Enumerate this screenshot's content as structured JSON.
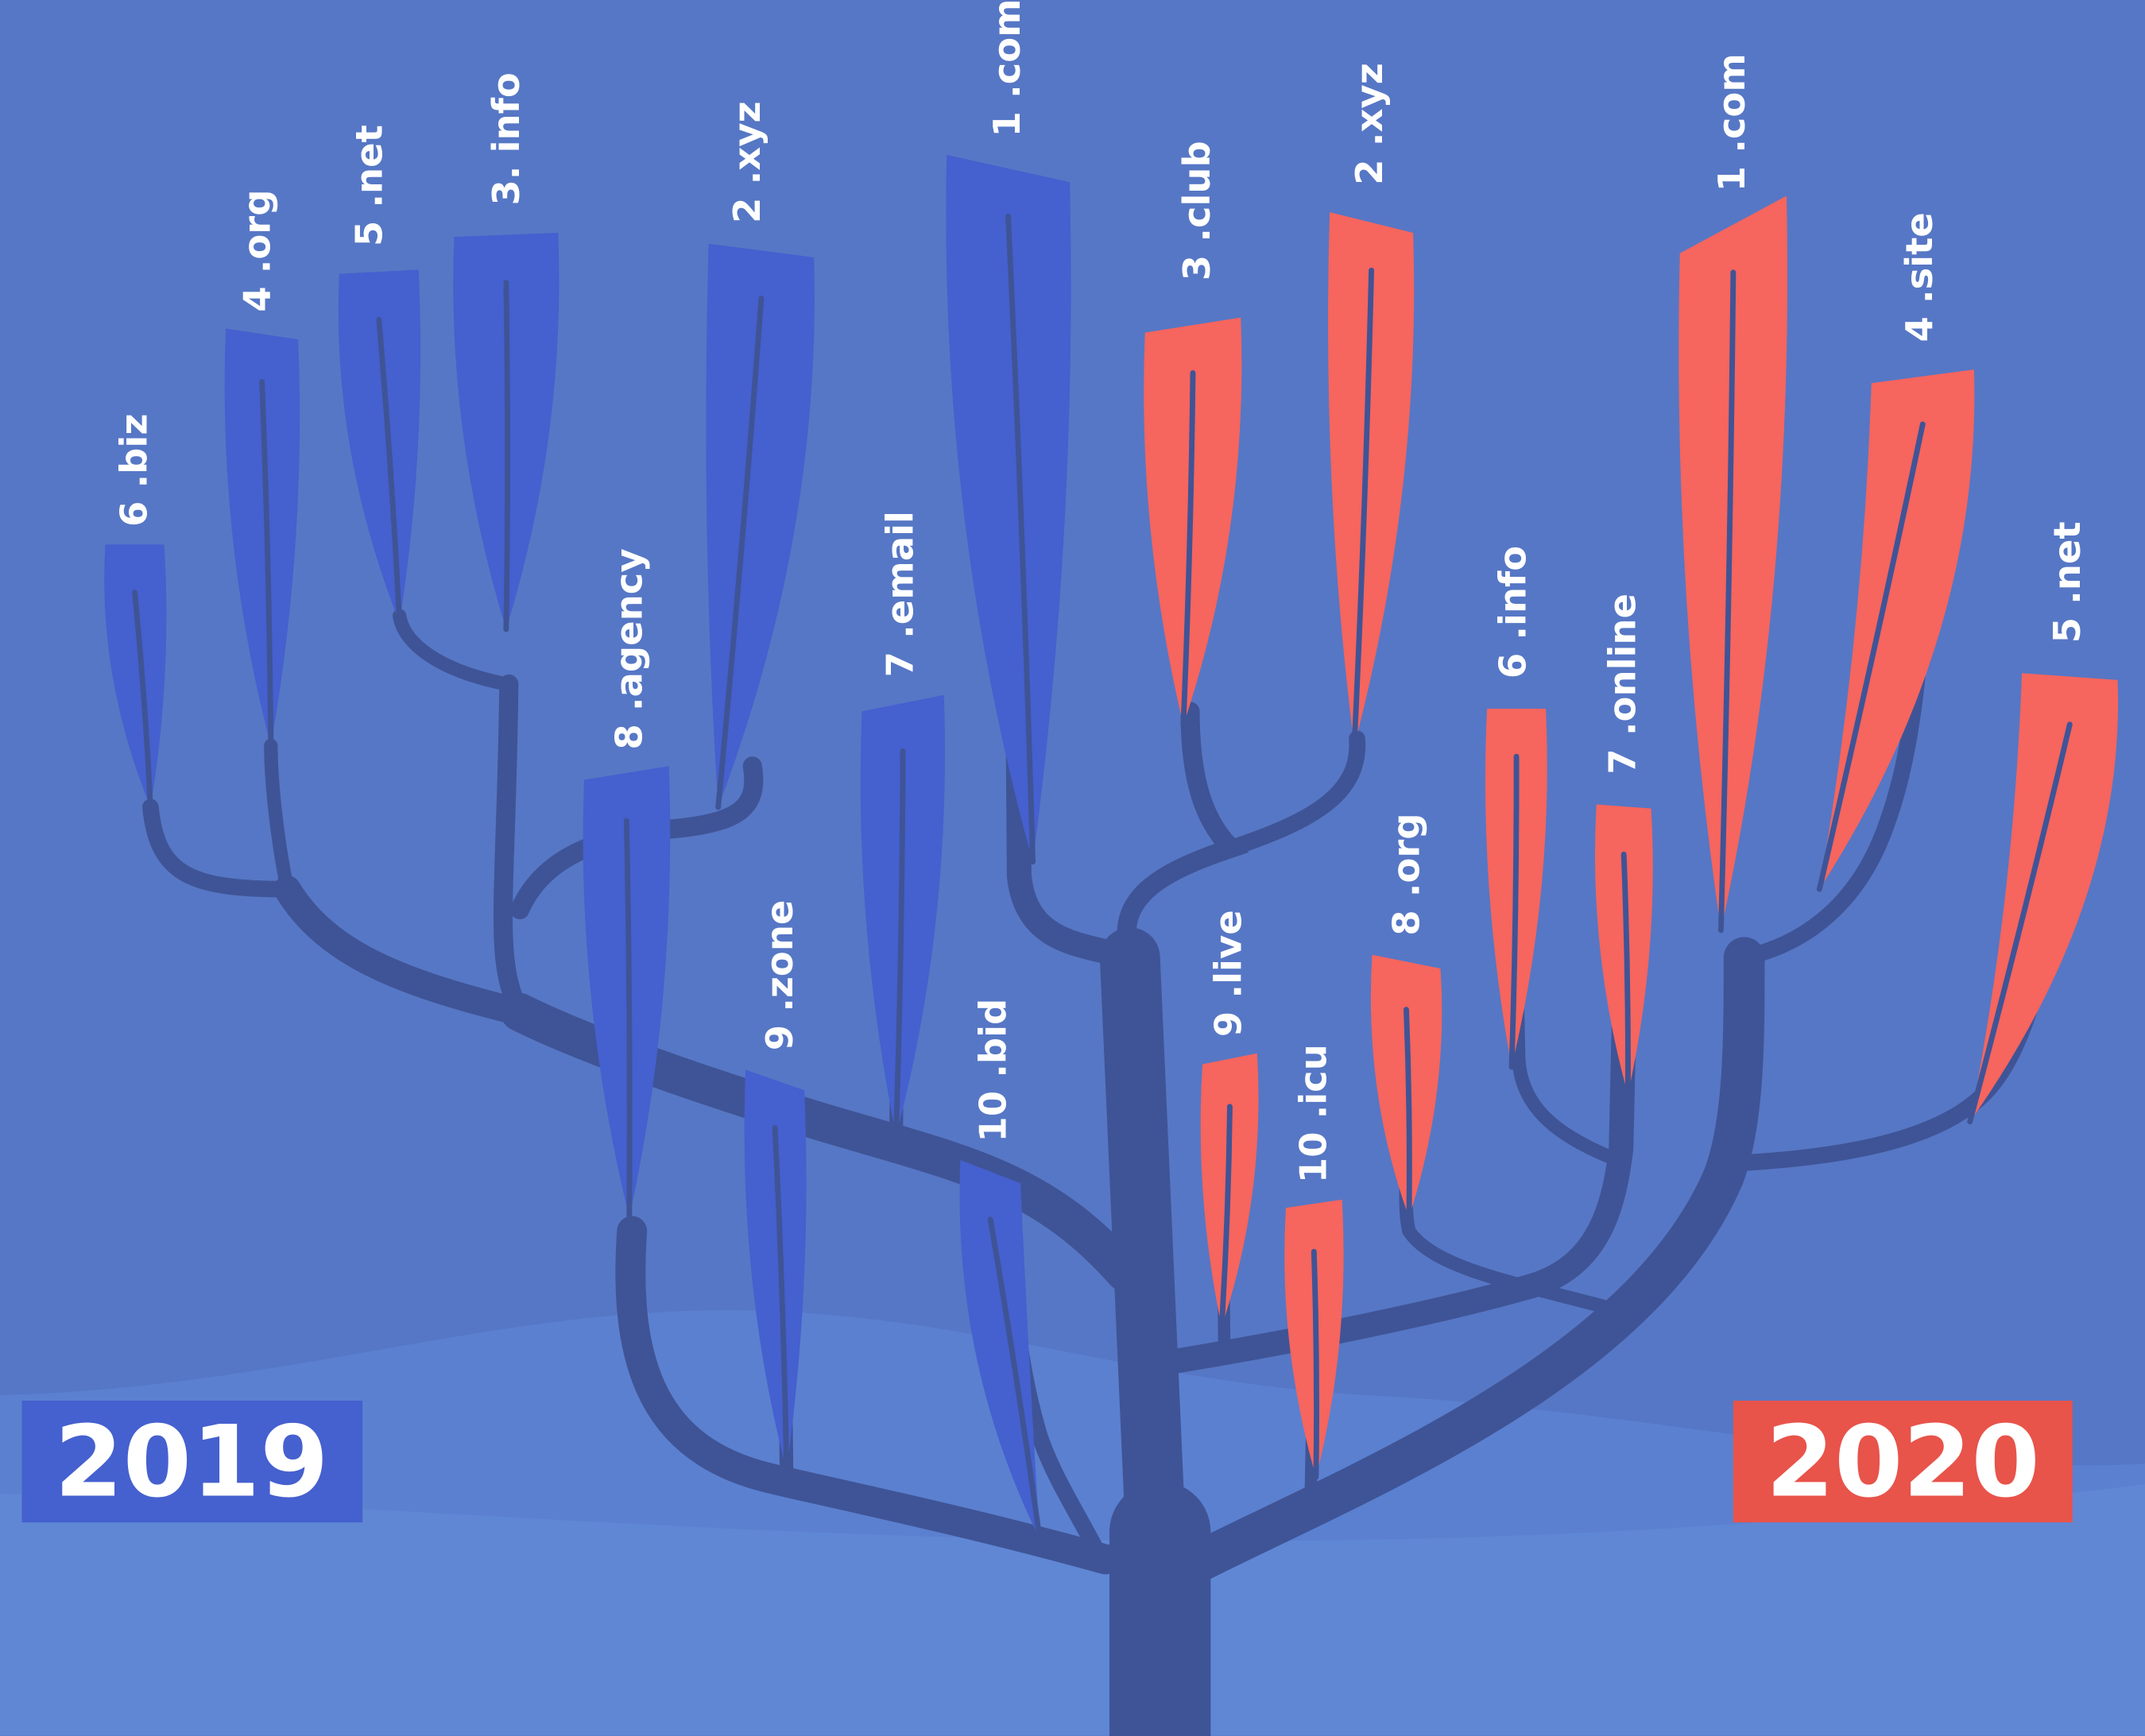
{
  "branches_2019": [
    {
      "label": "1 .com"
    },
    {
      "label": "2 .xyz"
    },
    {
      "label": "3. info"
    },
    {
      "label": "4 .org"
    },
    {
      "label": "5 .net"
    },
    {
      "label": "6 .biz"
    },
    {
      "label": "7 .email"
    },
    {
      "label": "8 .agency"
    },
    {
      "label": "9 .zone"
    },
    {
      "label": "10 .bid"
    }
  ],
  "branches_2020": [
    {
      "label": "1 .com"
    },
    {
      "label": "2 .xyz"
    },
    {
      "label": "3 .club"
    },
    {
      "label": "4 .site"
    },
    {
      "label": "5 .net"
    },
    {
      "label": "6 .info"
    },
    {
      "label": "7 .online"
    },
    {
      "label": "8 .org"
    },
    {
      "label": "9 .live"
    },
    {
      "label": "10 .icu"
    }
  ],
  "years": [
    "2019",
    "2020"
  ]
}
